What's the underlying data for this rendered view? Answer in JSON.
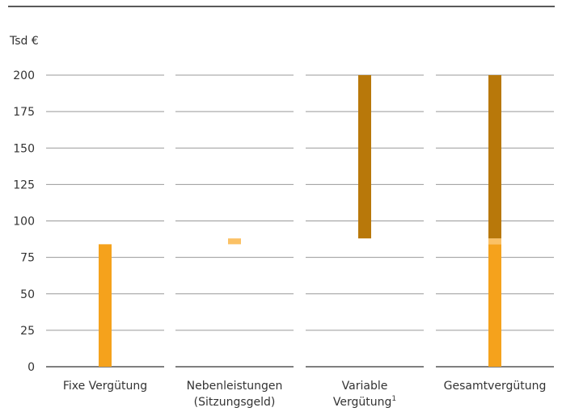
{
  "chart_data": {
    "type": "bar",
    "unit_label": "Tsd €",
    "ylim": [
      0,
      200
    ],
    "yticks": [
      "0",
      "25",
      "50",
      "75",
      "100",
      "125",
      "150",
      "175",
      "200"
    ],
    "categories": [
      {
        "lines": [
          "Fixe Vergütung"
        ],
        "superscript": ""
      },
      {
        "lines": [
          "Nebenleistungen",
          "(Sitzungsgeld)"
        ],
        "superscript": ""
      },
      {
        "lines": [
          "Variable",
          "Vergütung"
        ],
        "superscript": "1"
      },
      {
        "lines": [
          "Gesamtvergütung"
        ],
        "superscript": ""
      }
    ],
    "segments": [
      {
        "category": 0,
        "from": 0,
        "to": 84,
        "color": "#F5A21C"
      },
      {
        "category": 1,
        "from": 84,
        "to": 88,
        "color": "#FBC165"
      },
      {
        "category": 2,
        "from": 88,
        "to": 200,
        "color": "#B8780A"
      },
      {
        "category": 3,
        "from": 0,
        "to": 84,
        "color": "#F5A21C"
      },
      {
        "category": 3,
        "from": 84,
        "to": 88,
        "color": "#FBC165"
      },
      {
        "category": 3,
        "from": 88,
        "to": 200,
        "color": "#B8780A"
      }
    ],
    "grid": true,
    "colors": {
      "grid": "#999999",
      "axis": "#333333",
      "text": "#333333"
    }
  }
}
